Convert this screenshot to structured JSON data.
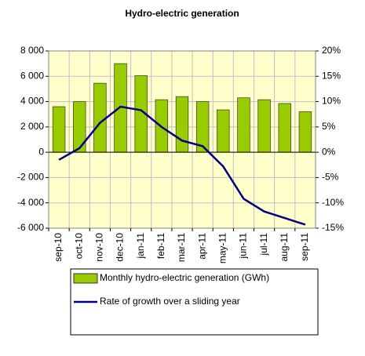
{
  "chart_data": {
    "type": "bar_line",
    "title": "Hydro-electric generation",
    "categories": [
      "sep-10",
      "oct-10",
      "nov-10",
      "dec-10",
      "jan-11",
      "feb-11",
      "mar-11",
      "apr-11",
      "may-11",
      "jun-11",
      "jul-11",
      "aug-11",
      "sep-11"
    ],
    "series": [
      {
        "name": "Monthly hydro-electric generation (GWh)",
        "type": "bar",
        "color": "#99cc00",
        "values": [
          3600,
          4000,
          5450,
          7000,
          6050,
          4150,
          4400,
          4000,
          3350,
          4300,
          4150,
          3850,
          3200
        ]
      },
      {
        "name": "Rate of growth over a sliding year",
        "type": "line",
        "axis": "y2",
        "color": "#000080",
        "values": [
          -1.5,
          0.8,
          5.8,
          9.0,
          8.3,
          5.0,
          2.3,
          1.2,
          -2.8,
          -9.2,
          -11.7,
          -13.0,
          -14.3
        ]
      }
    ],
    "ylim": [
      -6000,
      8000
    ],
    "yticks": [
      {
        "value": -6000,
        "label": "-6 000"
      },
      {
        "value": -4000,
        "label": "-4 000"
      },
      {
        "value": -2000,
        "label": "-2 000"
      },
      0,
      {
        "value": 2000,
        "label": "2 000"
      },
      {
        "value": 4000,
        "label": "4 000"
      },
      {
        "value": 6000,
        "label": "6 000"
      },
      {
        "value": 8000,
        "label": "8 000"
      }
    ],
    "y2lim": [
      -15,
      20
    ],
    "y2ticks": [
      {
        "value": -15,
        "label": "-15%"
      },
      {
        "value": -10,
        "label": "-10%"
      },
      {
        "value": -5,
        "label": "-5%"
      },
      {
        "value": 0,
        "label": "0%"
      },
      {
        "value": 5,
        "label": "5%"
      },
      {
        "value": 10,
        "label": "10%"
      },
      {
        "value": 15,
        "label": "15%"
      },
      {
        "value": 20,
        "label": "20%"
      }
    ],
    "grid": true,
    "legend": "bottom"
  }
}
